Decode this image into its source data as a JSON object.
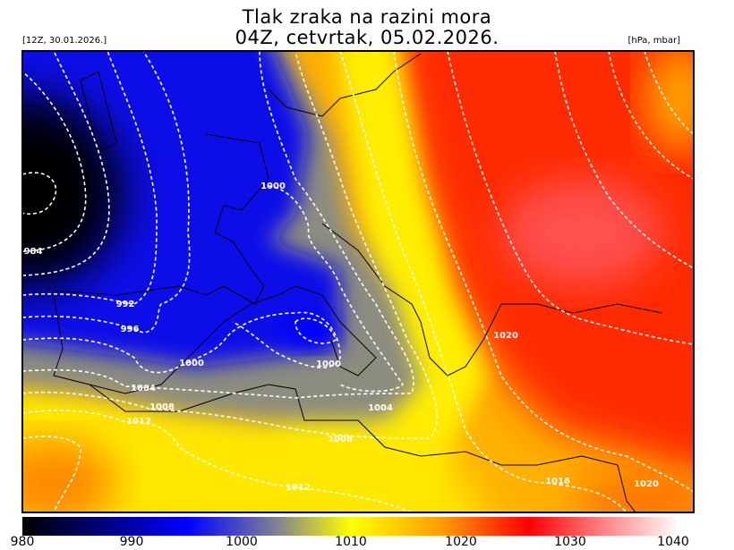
{
  "header": {
    "title": "Tlak zraka na razini mora",
    "subtitle": "04Z, cetvrtak, 05.02.2026.",
    "run_label": "[12Z, 30.01.2026.]",
    "unit_label": "[hPa, mbar]"
  },
  "map": {
    "variable": "mean sea level pressure",
    "contour_interval": 4,
    "contour_labels": [
      "1000",
      "984",
      "992",
      "996",
      "1000",
      "1000",
      "1004",
      "1008",
      "1012",
      "1004",
      "1008",
      "1012",
      "1020",
      "1016",
      "1020"
    ]
  },
  "colorbar": {
    "ticks": [
      "980",
      "990",
      "1000",
      "1010",
      "1020",
      "1030",
      "1040"
    ],
    "colors": {
      "980": "#000000",
      "995": "#0000ff",
      "1010": "#ffff00",
      "1026": "#ff0000",
      "1040": "#ffffff"
    }
  }
}
